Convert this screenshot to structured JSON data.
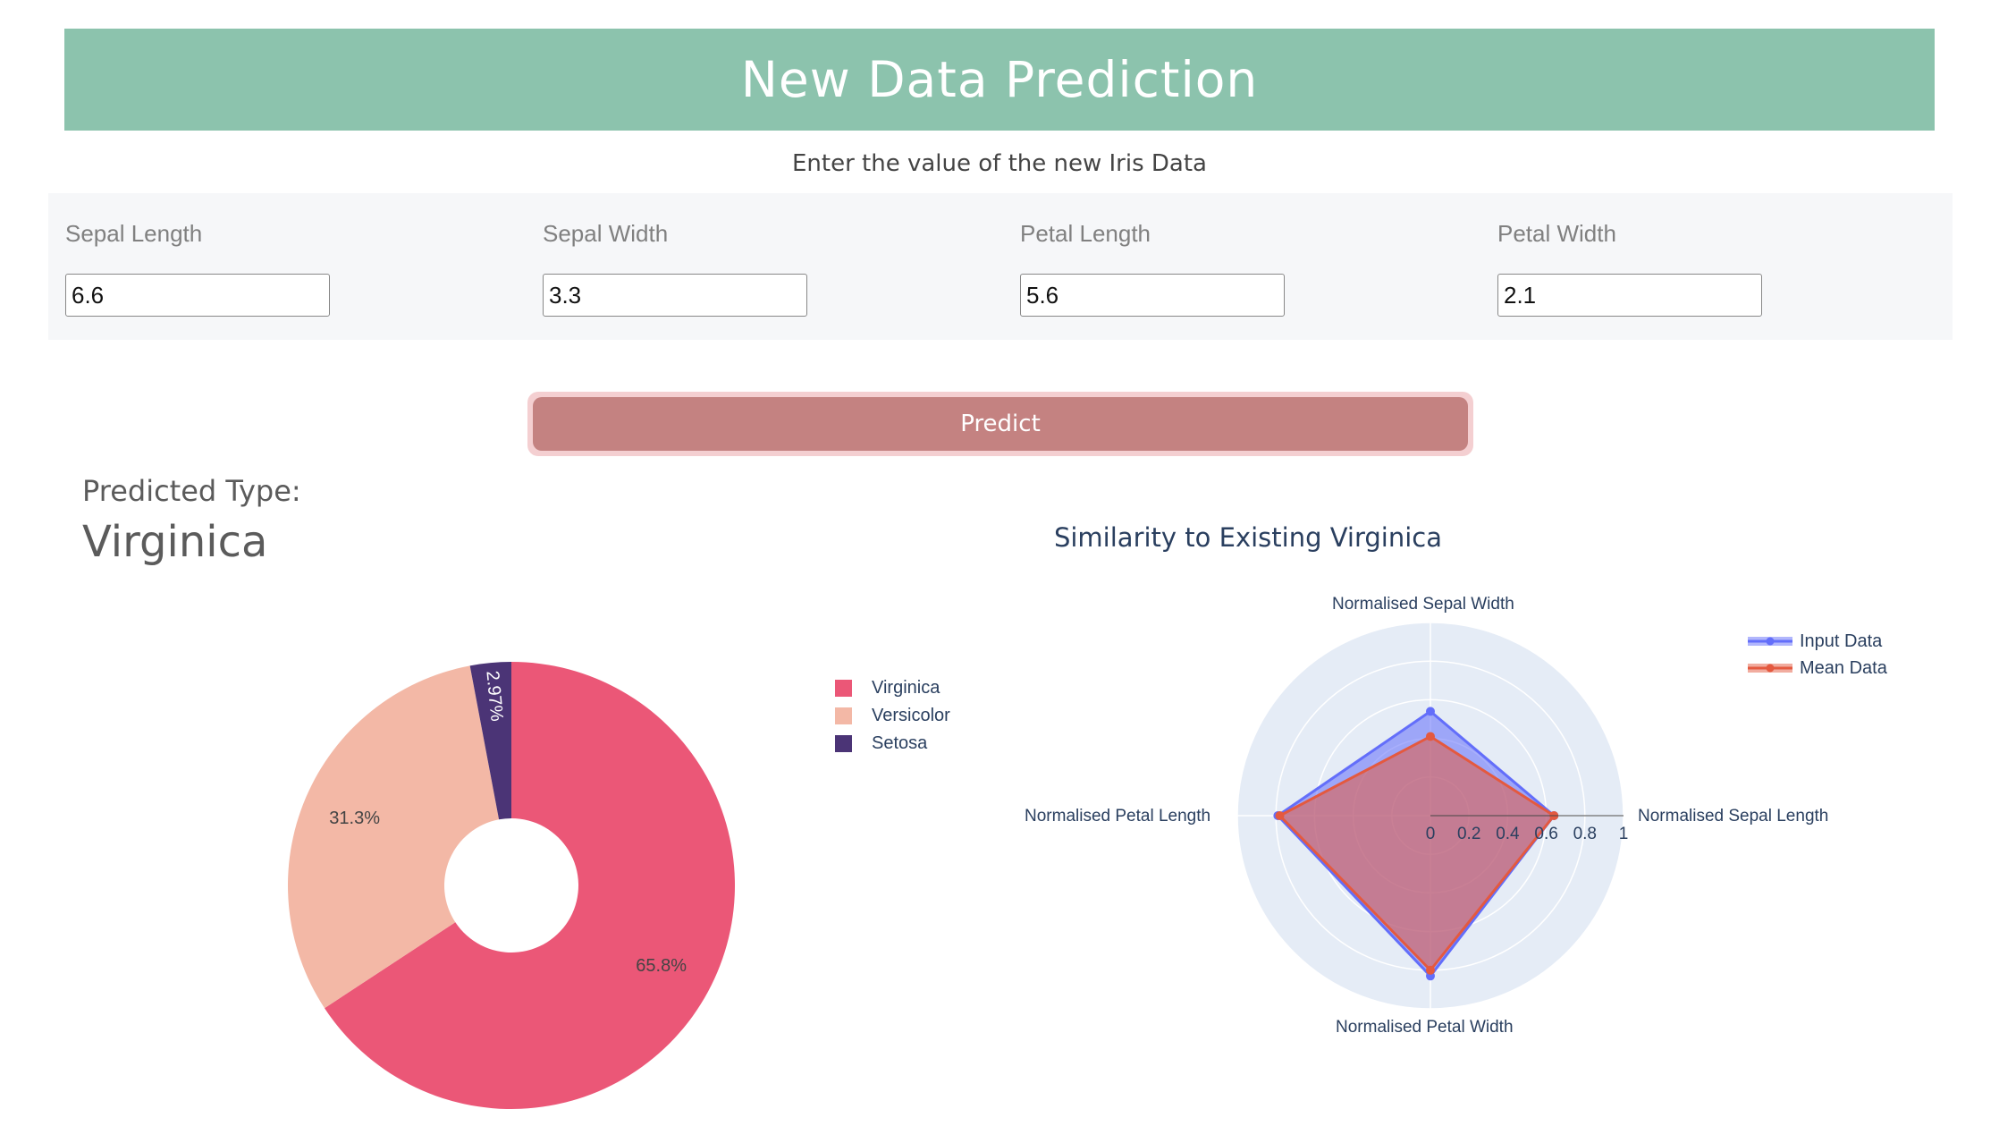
{
  "header": {
    "title": "New Data Prediction"
  },
  "subtitle": "Enter the value of the new Iris Data",
  "inputs": [
    {
      "label": "Sepal Length",
      "value": "6.6"
    },
    {
      "label": "Sepal Width",
      "value": "3.3"
    },
    {
      "label": "Petal Length",
      "value": "5.6"
    },
    {
      "label": "Petal Width",
      "value": "2.1"
    }
  ],
  "predict_button": {
    "label": "Predict"
  },
  "prediction": {
    "label": "Predicted Type:",
    "value": "Virginica"
  },
  "colors": {
    "header_bg": "#8cc3ad",
    "button": "#c48281",
    "button_glow": "#f4cfd1",
    "virginica": "#eb5777",
    "versicolor": "#f3b8a6",
    "setosa": "#4b3476",
    "input_data": "#636efa",
    "mean_data": "#e4593f"
  },
  "chart_data": [
    {
      "type": "pie",
      "hole": true,
      "legend_position": "right",
      "slices": [
        {
          "name": "Virginica",
          "value": 65.8,
          "label": "65.8%",
          "color": "#eb5777"
        },
        {
          "name": "Versicolor",
          "value": 31.3,
          "label": "31.3%",
          "color": "#f3b8a6"
        },
        {
          "name": "Setosa",
          "value": 2.97,
          "label": "2.97%",
          "color": "#4b3476"
        }
      ]
    },
    {
      "type": "radar",
      "title": "Similarity to Existing Virginica",
      "axes": [
        "Normalised Sepal Length",
        "Normalised Sepal Width",
        "Normalised Petal Length",
        "Normalised Petal Width"
      ],
      "radial_range": [
        0,
        1
      ],
      "radial_ticks": [
        "0",
        "0.2",
        "0.4",
        "0.6",
        "0.8",
        "1"
      ],
      "legend_position": "top-right",
      "series": [
        {
          "name": "Input Data",
          "values": [
            0.64,
            0.54,
            0.79,
            0.83
          ],
          "color": "#636efa"
        },
        {
          "name": "Mean Data",
          "values": [
            0.64,
            0.41,
            0.78,
            0.8
          ],
          "color": "#e4593f"
        }
      ]
    }
  ]
}
